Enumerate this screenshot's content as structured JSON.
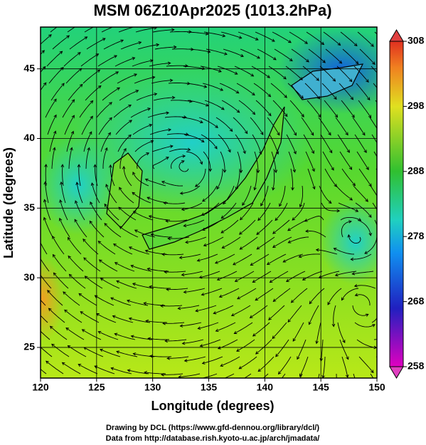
{
  "chart_data": {
    "type": "map",
    "title": "MSM 06Z10Apr2025 (1013.2hPa)",
    "xlabel": "Longitude (degrees)",
    "ylabel": "Latitude  (degrees)",
    "xlim": [
      120,
      150
    ],
    "ylim": [
      22.8,
      48
    ],
    "xticks": [
      120,
      125,
      130,
      135,
      140,
      145,
      150
    ],
    "yticks": [
      25,
      30,
      35,
      40,
      45
    ],
    "grid": true,
    "colorbar": {
      "lim": [
        258,
        308
      ],
      "ticks": [
        258,
        268,
        278,
        288,
        298,
        308
      ]
    }
  },
  "footer": [
    "Drawing by DCL (https://www.gfd-dennou.org/library/dcl/)",
    "Data from http://database.rish.kyoto-u.ac.jp/arch/jmadata/"
  ]
}
